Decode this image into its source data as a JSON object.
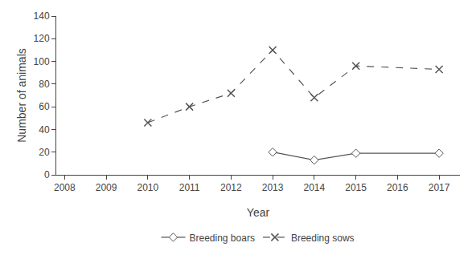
{
  "chart_data": {
    "type": "line",
    "xlabel": "Year",
    "ylabel": "Number of animals",
    "series": [
      {
        "name": "Breeding sows",
        "color": "#555555",
        "marker": "x",
        "line_style": "dashed",
        "x": [
          2010,
          2011,
          2012,
          2013,
          2014,
          2015,
          2017
        ],
        "values": [
          46,
          60,
          72,
          110,
          68,
          96,
          93
        ]
      },
      {
        "name": "Breeding boars",
        "color": "#555555",
        "marker": "diamond",
        "line_style": "solid",
        "x": [
          2013,
          2014,
          2015,
          2017
        ],
        "values": [
          20,
          13,
          19,
          19
        ]
      }
    ],
    "xlim": [
      2007.8,
      2017.5
    ],
    "xticks": [
      2008,
      2009,
      2010,
      2011,
      2012,
      2013,
      2014,
      2015,
      2016,
      2017
    ],
    "ylim": [
      0,
      140
    ],
    "yticks": [
      0,
      20,
      40,
      60,
      80,
      100,
      120,
      140
    ],
    "grid": false,
    "legend": "bottom"
  }
}
